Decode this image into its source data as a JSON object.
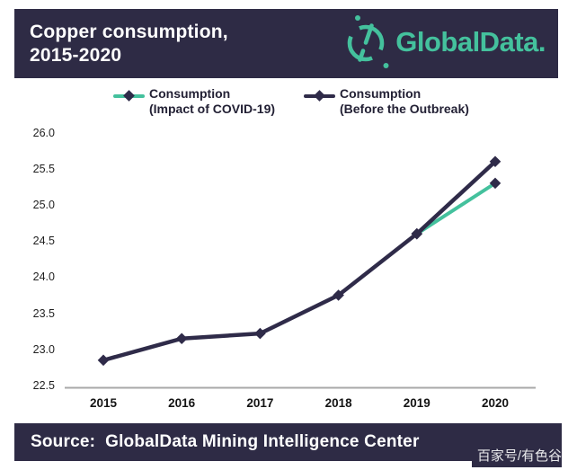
{
  "header": {
    "title_line1": "Copper consumption,",
    "title_line2": "2015-2020",
    "logo_text": "GlobalData."
  },
  "legend": {
    "items": [
      {
        "label_line1": "Consumption",
        "label_line2": "(Impact of COVID-19)",
        "line_color": "#44c19d"
      },
      {
        "label_line1": "Consumption",
        "label_line2": "(Before the Outbreak)",
        "line_color": "#2f2b49"
      }
    ]
  },
  "chart_data": {
    "type": "line",
    "categories": [
      "2015",
      "2016",
      "2017",
      "2018",
      "2019",
      "2020"
    ],
    "series": [
      {
        "name": "Consumption (Before the Outbreak)",
        "color": "#2f2b49",
        "x": [
          "2015",
          "2016",
          "2017",
          "2018",
          "2019",
          "2020"
        ],
        "values": [
          22.85,
          23.15,
          23.22,
          23.75,
          24.6,
          25.6
        ]
      },
      {
        "name": "Consumption (Impact of COVID-19)",
        "color": "#44c19d",
        "x": [
          "2019",
          "2020"
        ],
        "values": [
          24.6,
          25.3
        ]
      }
    ],
    "title": "Copper consumption, 2015-2020",
    "xlabel": "",
    "ylabel": "",
    "ylim": [
      22.5,
      26.0
    ],
    "y_ticks": [
      "26.0",
      "25.5",
      "25.0",
      "24.5",
      "24.0",
      "23.5",
      "23.0",
      "22.5"
    ],
    "grid": false,
    "legend_position": "top",
    "marker": "diamond"
  },
  "footer": {
    "source_text": "Source:  GlobalData Mining Intelligence Center"
  },
  "watermark": "百家号/有色谷",
  "colors": {
    "navy": "#2e2b45",
    "green": "#44c19d",
    "line_dark": "#2f2b49",
    "axis_gray": "#a8a8a8"
  }
}
